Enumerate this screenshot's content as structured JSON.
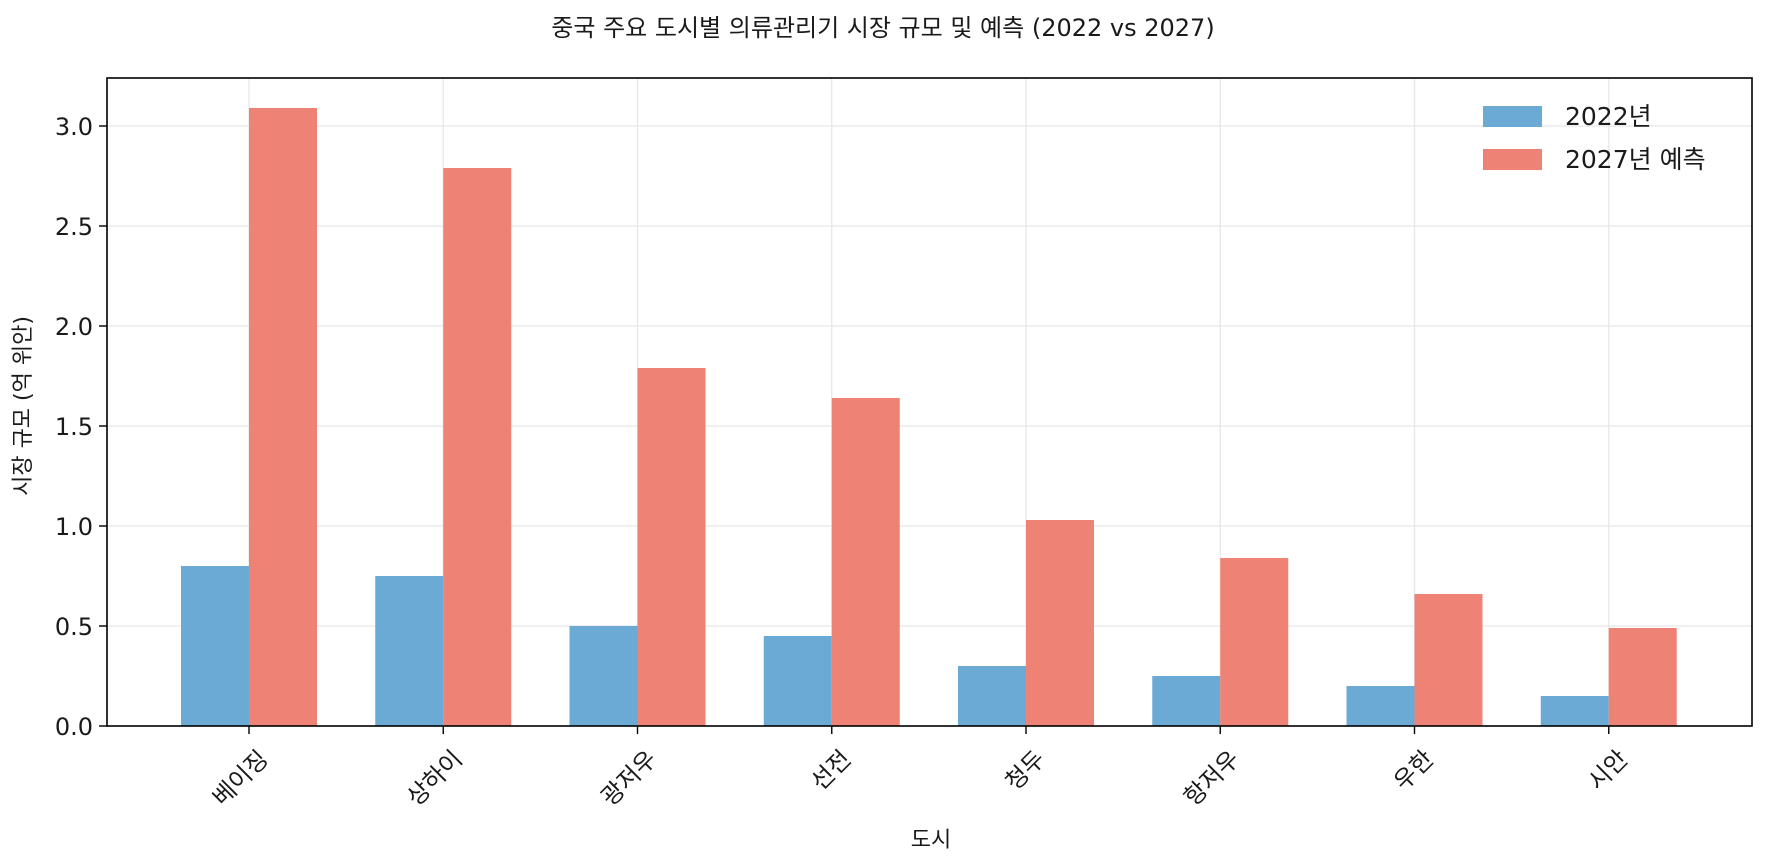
{
  "chart_data": {
    "type": "bar",
    "title": "중국 주요 도시별 의류관리기 시장 규모 및 예측 (2022 vs 2027)",
    "xlabel": "도시",
    "ylabel": "시장 규모 (억 위안)",
    "categories": [
      "베이징",
      "상하이",
      "광저우",
      "선전",
      "청두",
      "항저우",
      "우한",
      "시안"
    ],
    "series": [
      {
        "name": "2022년",
        "color": "#6baad5",
        "values": [
          0.8,
          0.75,
          0.5,
          0.45,
          0.3,
          0.25,
          0.2,
          0.15
        ]
      },
      {
        "name": "2027년 예측",
        "color": "#ed8275",
        "values": [
          3.09,
          2.79,
          1.79,
          1.64,
          1.03,
          0.84,
          0.66,
          0.49
        ]
      }
    ],
    "ylim": [
      0,
      3.24
    ],
    "yticks": [
      "0.0",
      "0.5",
      "1.0",
      "1.5",
      "2.0",
      "2.5",
      "3.0"
    ],
    "grid": true,
    "legend_position": "top-right"
  }
}
